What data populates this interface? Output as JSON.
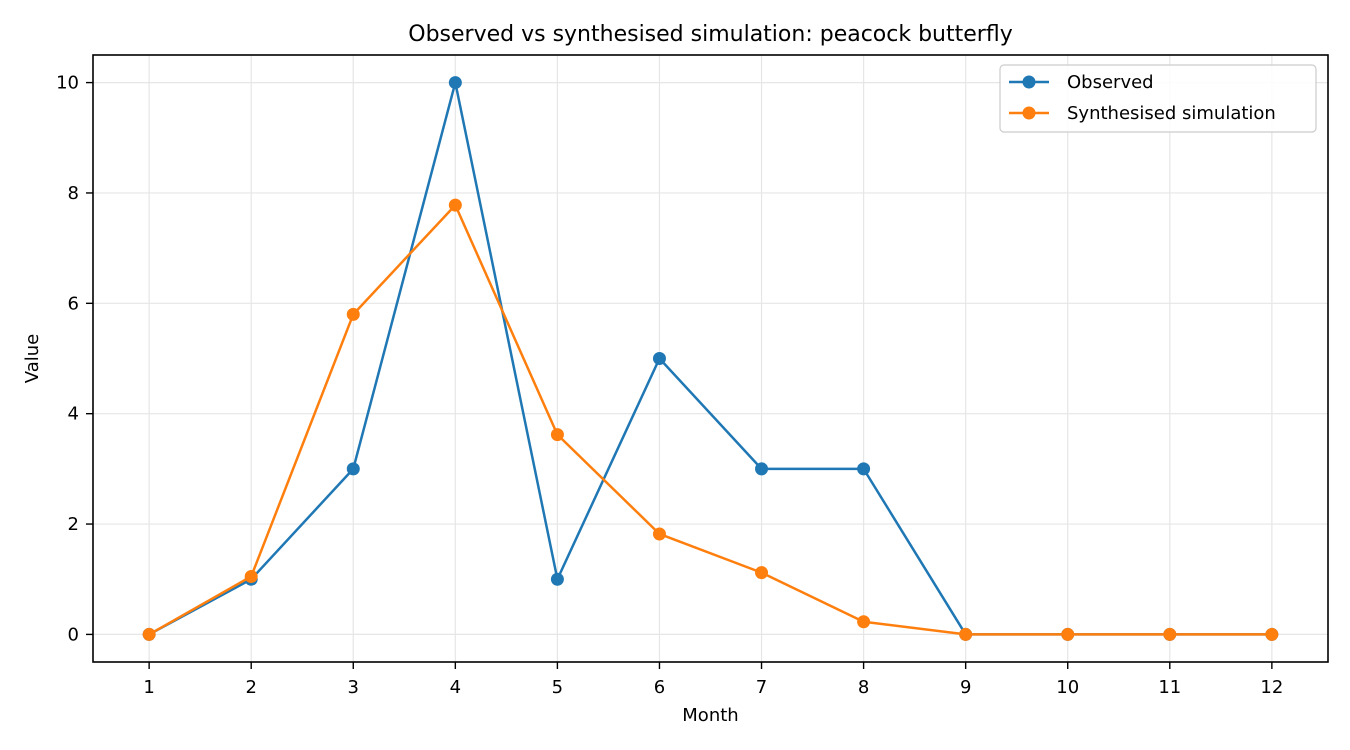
{
  "chart_data": {
    "type": "line",
    "title": "Observed vs synthesised simulation: peacock butterfly",
    "xlabel": "Month",
    "ylabel": "Value",
    "x": [
      1,
      2,
      3,
      4,
      5,
      6,
      7,
      8,
      9,
      10,
      11,
      12
    ],
    "xticks": [
      "1",
      "2",
      "3",
      "4",
      "5",
      "6",
      "7",
      "8",
      "9",
      "10",
      "11",
      "12"
    ],
    "yticks": [
      "0",
      "2",
      "4",
      "6",
      "8",
      "10"
    ],
    "ylim": [
      -0.5,
      10.5
    ],
    "xlim": [
      0.45,
      12.55
    ],
    "grid": true,
    "legend": "top-right",
    "series": [
      {
        "name": "Observed",
        "color": "#1f77b4",
        "values": [
          0,
          1,
          3,
          10,
          1,
          5,
          3,
          3,
          0,
          0,
          0,
          0
        ]
      },
      {
        "name": "Synthesised simulation",
        "color": "#ff7f0e",
        "values": [
          0,
          1.05,
          5.8,
          7.78,
          3.62,
          1.82,
          1.12,
          0.23,
          0,
          0,
          0,
          0
        ]
      }
    ]
  }
}
